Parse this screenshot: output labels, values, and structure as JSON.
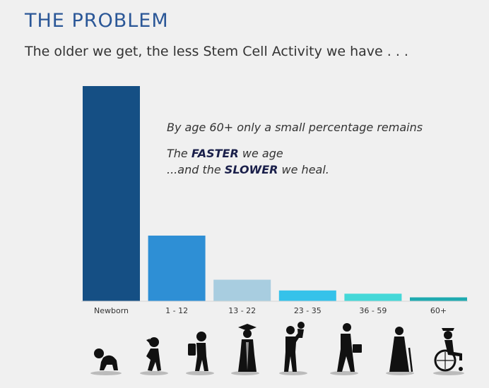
{
  "header": {
    "title": "THE PROBLEM",
    "subtitle": "The older we get, the less Stem Cell Activity we have . . ."
  },
  "notes": {
    "line1": "By age 60+ only a small percentage remains",
    "line2_pre": "The ",
    "line2_bold": "FASTER",
    "line2_post": " we age",
    "line3_pre": "...and the ",
    "line3_bold": "SLOWER",
    "line3_post": " we heal."
  },
  "chart_data": {
    "type": "bar",
    "title": "",
    "xlabel": "",
    "ylabel": "",
    "categories": [
      "Newborn",
      "1 - 12",
      "13 - 22",
      "23 - 35",
      "36 - 59",
      "60+"
    ],
    "values": [
      100,
      30.5,
      10,
      5,
      3.5,
      1.8
    ],
    "ylim": [
      0,
      100
    ],
    "colors": [
      "#154f84",
      "#2e8fd5",
      "#a8cde0",
      "#35c2ea",
      "#45d8d8",
      "#1faab0"
    ],
    "grid": false,
    "legend": "none"
  },
  "icons": [
    "baby-crawling-icon",
    "child-walking-icon",
    "student-backpack-icon",
    "graduate-icon",
    "parent-child-icon",
    "businessman-briefcase-icon",
    "elderly-cane-icon",
    "wheelchair-icon"
  ]
}
